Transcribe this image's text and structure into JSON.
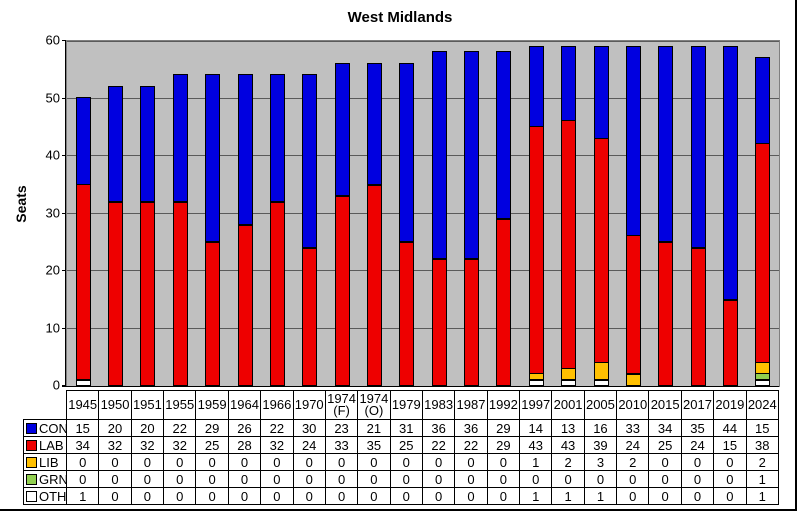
{
  "title": "West Midlands",
  "y_axis": {
    "label": "Seats",
    "ticks": [
      0,
      10,
      20,
      30,
      40,
      50,
      60
    ],
    "max": 60
  },
  "colors": {
    "plot_background": "#C0C0C0",
    "con": "#0000E0",
    "lab": "#EE0000",
    "lib": "#FFC000",
    "grn": "#92D050",
    "oth": "#FFFFFF"
  },
  "chart_data": {
    "type": "bar",
    "stacked": true,
    "title": "West Midlands",
    "xlabel": "",
    "ylabel": "Seats",
    "ylim": [
      0,
      60
    ],
    "yticks": [
      0,
      10,
      20,
      30,
      40,
      50,
      60
    ],
    "grid": true,
    "legend_position": "table-left-column",
    "stack_order_bottom_to_top": [
      "OTH",
      "GRN",
      "LIB",
      "LAB",
      "CON"
    ],
    "categories": [
      "1945",
      "1950",
      "1951",
      "1955",
      "1959",
      "1964",
      "1966",
      "1970",
      "1974 (F)",
      "1974 (O)",
      "1979",
      "1983",
      "1987",
      "1992",
      "1997",
      "2001",
      "2005",
      "2010",
      "2015",
      "2017",
      "2019",
      "2024"
    ],
    "series": [
      {
        "name": "CON",
        "color": "#0000E0",
        "values": [
          15,
          20,
          20,
          22,
          29,
          26,
          22,
          30,
          23,
          21,
          31,
          36,
          36,
          29,
          14,
          13,
          16,
          33,
          34,
          35,
          44,
          15
        ]
      },
      {
        "name": "LAB",
        "color": "#EE0000",
        "values": [
          34,
          32,
          32,
          32,
          25,
          28,
          32,
          24,
          33,
          35,
          25,
          22,
          22,
          29,
          43,
          43,
          39,
          24,
          25,
          24,
          15,
          38
        ]
      },
      {
        "name": "LIB",
        "color": "#FFC000",
        "values": [
          0,
          0,
          0,
          0,
          0,
          0,
          0,
          0,
          0,
          0,
          0,
          0,
          0,
          0,
          1,
          2,
          3,
          2,
          0,
          0,
          0,
          2
        ]
      },
      {
        "name": "GRN",
        "color": "#92D050",
        "values": [
          0,
          0,
          0,
          0,
          0,
          0,
          0,
          0,
          0,
          0,
          0,
          0,
          0,
          0,
          0,
          0,
          0,
          0,
          0,
          0,
          0,
          1
        ]
      },
      {
        "name": "OTH",
        "color": "#FFFFFF",
        "values": [
          1,
          0,
          0,
          0,
          0,
          0,
          0,
          0,
          0,
          0,
          0,
          0,
          0,
          0,
          1,
          1,
          1,
          0,
          0,
          0,
          0,
          1
        ]
      }
    ]
  }
}
